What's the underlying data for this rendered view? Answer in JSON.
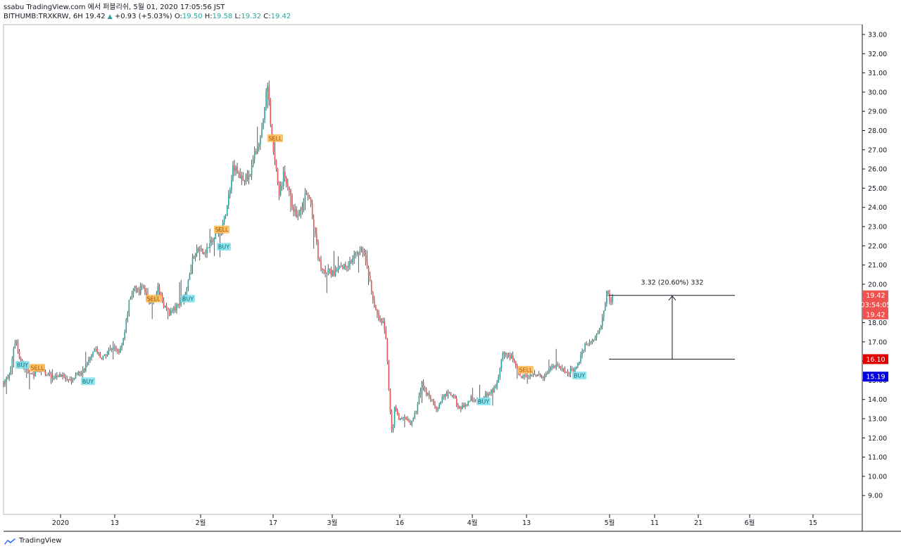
{
  "header": {
    "publisher": "ssabu TradingView.com 에서 퍼블리쉬, 5월 01, 2020 17:05:56 JST",
    "symbol": "BITHUMB:TRXKRW, 6H",
    "last": "19.42",
    "change": "+0.93 (+5.03%)",
    "o_label": "O:",
    "o": "19.50",
    "h_label": "H:",
    "h": "19.58",
    "l_label": "L:",
    "l": "19.32",
    "c_label": "C:",
    "c": "19.42"
  },
  "footer": {
    "brand": "TradingView"
  },
  "colors": {
    "up": "#26a69a",
    "down": "#ef5350",
    "wick": "#131722",
    "buy_bg": "#7fe0ec",
    "sell_bg": "#ffb84d",
    "price_badge": "#ef5350",
    "level_low_badge": "#e00000",
    "level_blue_badge": "#0000dd"
  },
  "chart_data": {
    "type": "candlestick",
    "y_ticks": [
      "33.00",
      "32.00",
      "31.00",
      "30.00",
      "29.00",
      "28.00",
      "27.00",
      "26.00",
      "25.00",
      "24.00",
      "23.00",
      "22.00",
      "21.00",
      "20.00",
      "19.00",
      "18.00",
      "17.00",
      "16.00",
      "15.00",
      "14.00",
      "13.00",
      "12.00",
      "11.00",
      "10.00",
      "9.00"
    ],
    "ylim": [
      8.5,
      33.5
    ],
    "x_ticks": [
      "2020",
      "13",
      "2월",
      "17",
      "3월",
      "16",
      "4월",
      "13",
      "5월",
      "11",
      "21",
      "6월",
      "15"
    ],
    "path_points": [
      [
        0,
        14.9
      ],
      [
        8,
        15.2
      ],
      [
        14,
        16.6
      ],
      [
        18,
        17.2
      ],
      [
        22,
        16.2
      ],
      [
        30,
        15.6
      ],
      [
        40,
        15.3
      ],
      [
        55,
        15.5
      ],
      [
        68,
        15.2
      ],
      [
        80,
        15.3
      ],
      [
        92,
        14.9
      ],
      [
        100,
        15.1
      ],
      [
        108,
        15.4
      ],
      [
        116,
        15.6
      ],
      [
        124,
        16.4
      ],
      [
        130,
        16.7
      ],
      [
        138,
        16.1
      ],
      [
        146,
        16.3
      ],
      [
        155,
        16.7
      ],
      [
        165,
        16.5
      ],
      [
        172,
        17.5
      ],
      [
        178,
        19.0
      ],
      [
        185,
        19.8
      ],
      [
        192,
        19.6
      ],
      [
        198,
        20.0
      ],
      [
        204,
        19.2
      ],
      [
        212,
        19.0
      ],
      [
        220,
        19.8
      ],
      [
        228,
        18.9
      ],
      [
        236,
        18.5
      ],
      [
        246,
        18.8
      ],
      [
        256,
        19.4
      ],
      [
        262,
        20.0
      ],
      [
        268,
        21.3
      ],
      [
        276,
        21.8
      ],
      [
        284,
        21.6
      ],
      [
        292,
        22.0
      ],
      [
        300,
        22.4
      ],
      [
        308,
        22.8
      ],
      [
        314,
        23.4
      ],
      [
        320,
        24.6
      ],
      [
        326,
        26.2
      ],
      [
        332,
        25.8
      ],
      [
        340,
        25.4
      ],
      [
        348,
        25.6
      ],
      [
        355,
        26.5
      ],
      [
        362,
        27.4
      ],
      [
        368,
        28.2
      ],
      [
        372,
        29.6
      ],
      [
        376,
        30.4
      ],
      [
        380,
        28.0
      ],
      [
        386,
        26.3
      ],
      [
        392,
        24.6
      ],
      [
        398,
        25.7
      ],
      [
        404,
        25.2
      ],
      [
        410,
        24.1
      ],
      [
        416,
        23.6
      ],
      [
        424,
        23.9
      ],
      [
        430,
        24.8
      ],
      [
        436,
        24.1
      ],
      [
        442,
        22.8
      ],
      [
        448,
        21.2
      ],
      [
        454,
        20.6
      ],
      [
        462,
        20.7
      ],
      [
        470,
        20.5
      ],
      [
        478,
        20.9
      ],
      [
        486,
        21.0
      ],
      [
        494,
        21.2
      ],
      [
        500,
        21.8
      ],
      [
        508,
        21.7
      ],
      [
        516,
        21.1
      ],
      [
        522,
        19.8
      ],
      [
        528,
        18.6
      ],
      [
        534,
        18.1
      ],
      [
        540,
        18.0
      ],
      [
        544,
        16.9
      ],
      [
        548,
        13.9
      ],
      [
        552,
        12.1
      ],
      [
        556,
        13.7
      ],
      [
        562,
        12.9
      ],
      [
        570,
        13.1
      ],
      [
        578,
        12.6
      ],
      [
        586,
        13.4
      ],
      [
        594,
        14.9
      ],
      [
        600,
        14.4
      ],
      [
        608,
        14.0
      ],
      [
        616,
        13.4
      ],
      [
        624,
        14.1
      ],
      [
        632,
        14.3
      ],
      [
        640,
        14.1
      ],
      [
        648,
        13.5
      ],
      [
        656,
        13.7
      ],
      [
        664,
        14.1
      ],
      [
        672,
        13.9
      ],
      [
        680,
        14.0
      ],
      [
        688,
        14.4
      ],
      [
        696,
        14.4
      ],
      [
        704,
        15.3
      ],
      [
        710,
        16.5
      ],
      [
        718,
        16.3
      ],
      [
        726,
        16.0
      ],
      [
        734,
        15.1
      ],
      [
        742,
        15.3
      ],
      [
        750,
        15.2
      ],
      [
        758,
        15.4
      ],
      [
        766,
        15.0
      ],
      [
        774,
        15.4
      ],
      [
        782,
        15.8
      ],
      [
        790,
        15.7
      ],
      [
        798,
        15.3
      ],
      [
        806,
        15.5
      ],
      [
        814,
        15.6
      ],
      [
        820,
        16.3
      ],
      [
        826,
        16.9
      ],
      [
        834,
        16.9
      ],
      [
        842,
        17.4
      ],
      [
        848,
        17.9
      ],
      [
        854,
        18.9
      ],
      [
        858,
        19.9
      ],
      [
        862,
        18.9
      ],
      [
        866,
        19.42
      ]
    ],
    "signals": [
      {
        "type": "BUY",
        "x": 27,
        "y": 15.8
      },
      {
        "type": "SELL",
        "x": 48,
        "y": 15.65
      },
      {
        "type": "BUY",
        "x": 120,
        "y": 14.95
      },
      {
        "type": "BUY",
        "x": 262,
        "y": 19.25
      },
      {
        "type": "SELL",
        "x": 213,
        "y": 19.25
      },
      {
        "type": "SELL",
        "x": 310,
        "y": 22.85
      },
      {
        "type": "BUY",
        "x": 313,
        "y": 21.95
      },
      {
        "type": "SELL",
        "x": 386,
        "y": 27.6
      },
      {
        "type": "BUY",
        "x": 682,
        "y": 13.9
      },
      {
        "type": "SELL",
        "x": 742,
        "y": 15.55
      },
      {
        "type": "BUY",
        "x": 818,
        "y": 15.25
      }
    ],
    "measure": {
      "top": 19.42,
      "bottom": 16.1,
      "label": "3.32 (20.60%) 332"
    },
    "price_badges": [
      {
        "value": 19.42,
        "label": "19.42",
        "color_key": "price_badge"
      },
      {
        "value": 18.93,
        "label": "03:54:05",
        "color_key": "price_badge"
      },
      {
        "value": 18.43,
        "label": "19.42",
        "color_key": "price_badge"
      },
      {
        "value": 16.1,
        "label": "16.10",
        "color_key": "level_low_badge"
      },
      {
        "value": 15.19,
        "label": "15.19",
        "color_key": "level_blue_badge"
      }
    ]
  }
}
